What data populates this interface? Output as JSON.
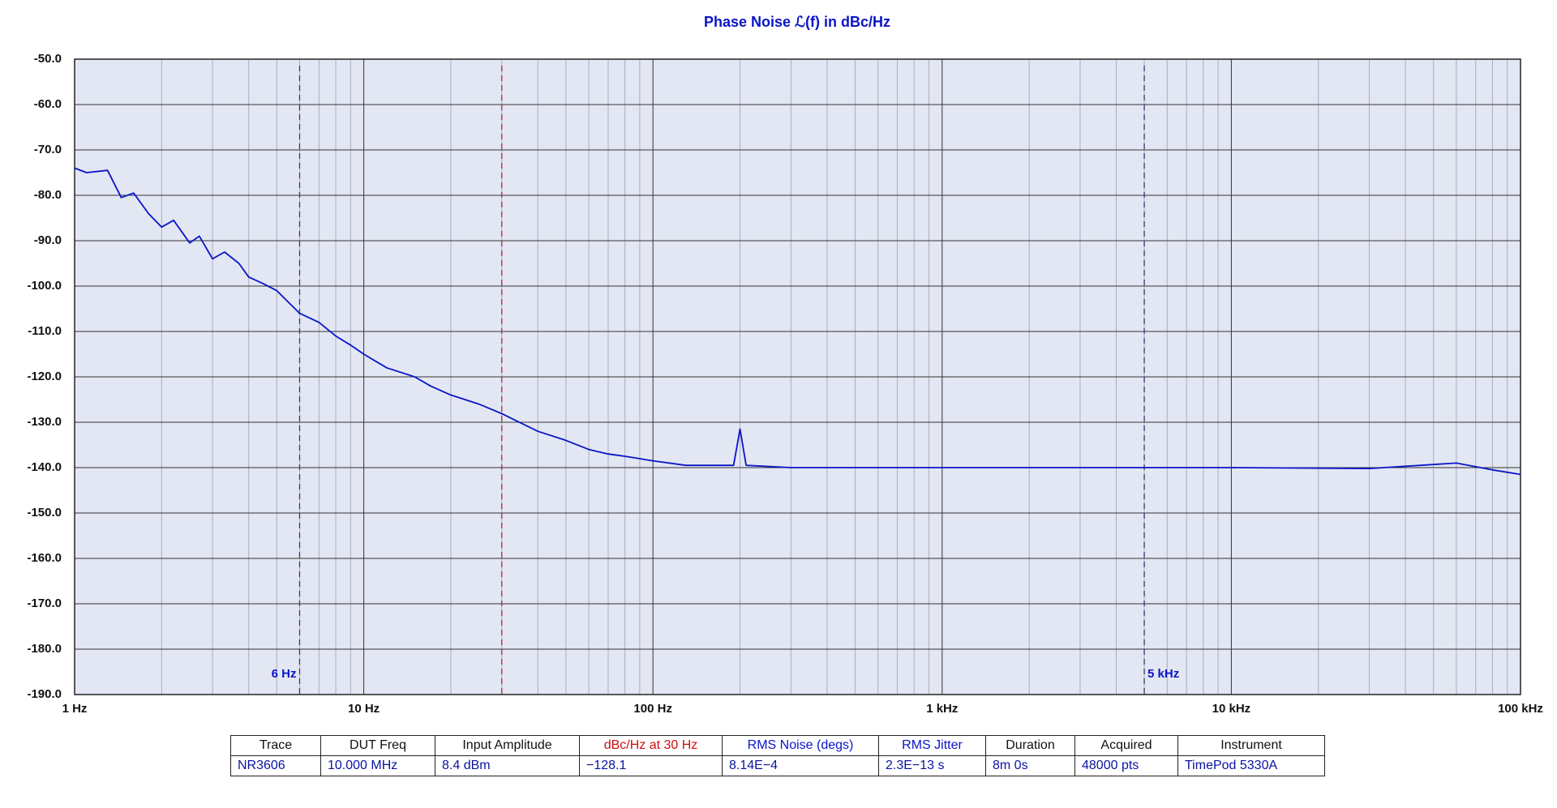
{
  "chart_data": {
    "type": "line",
    "title": "Phase Noise ℒ(f) in dBc/Hz",
    "x": [
      1,
      1.1,
      1.3,
      1.45,
      1.6,
      1.8,
      2,
      2.2,
      2.5,
      2.7,
      3,
      3.3,
      3.7,
      4,
      4.5,
      5,
      6,
      7,
      8,
      9,
      10,
      12,
      15,
      17,
      20,
      25,
      30,
      40,
      50,
      60,
      70,
      80,
      100,
      130,
      190,
      200,
      210,
      300,
      500,
      1000,
      3000,
      10000,
      30000,
      60000,
      80000,
      100000
    ],
    "values": [
      -74,
      -75,
      -74.5,
      -80.5,
      -79.5,
      -84,
      -87,
      -85.5,
      -90.5,
      -89,
      -94,
      -92.5,
      -95,
      -98,
      -99.5,
      -101,
      -106,
      -108,
      -111,
      -113,
      -115,
      -118,
      -120,
      -122,
      -124,
      -126,
      -128.1,
      -132,
      -134,
      -136,
      -137,
      -137.5,
      -138.5,
      -139.5,
      -139.5,
      -131.5,
      -139.5,
      -140,
      -140,
      -140,
      -140,
      -140,
      -140.2,
      -139,
      -140.5,
      -141.5
    ],
    "color": "#0a14c8",
    "log_x": true,
    "xlim": [
      1,
      100000
    ],
    "xticks": [
      {
        "value": 1,
        "label": "1 Hz"
      },
      {
        "value": 10,
        "label": "10 Hz"
      },
      {
        "value": 100,
        "label": "100 Hz"
      },
      {
        "value": 1000,
        "label": "1 kHz"
      },
      {
        "value": 10000,
        "label": "10 kHz"
      },
      {
        "value": 100000,
        "label": "100 kHz"
      }
    ],
    "ylim": [
      -190,
      -50
    ],
    "yticks": [
      {
        "value": -50,
        "label": "-50.0"
      },
      {
        "value": -60,
        "label": "-60.0"
      },
      {
        "value": -70,
        "label": "-70.0"
      },
      {
        "value": -80,
        "label": "-80.0"
      },
      {
        "value": -90,
        "label": "-90.0"
      },
      {
        "value": -100,
        "label": "-100.0"
      },
      {
        "value": -110,
        "label": "-110.0"
      },
      {
        "value": -120,
        "label": "-120.0"
      },
      {
        "value": -130,
        "label": "-130.0"
      },
      {
        "value": -140,
        "label": "-140.0"
      },
      {
        "value": -150,
        "label": "-150.0"
      },
      {
        "value": -160,
        "label": "-160.0"
      },
      {
        "value": -170,
        "label": "-170.0"
      },
      {
        "value": -180,
        "label": "-180.0"
      },
      {
        "value": -190,
        "label": "-190.0"
      }
    ],
    "grid": true,
    "minor_grid": true,
    "markers": [
      {
        "x": 6,
        "label": "6 Hz",
        "color": "#3a3a6a"
      },
      {
        "x": 30,
        "color": "#d02020"
      },
      {
        "x": 5000,
        "label": "5 kHz",
        "color": "#3a3a6a"
      }
    ],
    "table": {
      "header": [
        "Trace",
        "DUT Freq",
        "Input Amplitude",
        "dBc/Hz at 30 Hz",
        "RMS Noise (degs)",
        "RMS Jitter",
        "Duration",
        "Acquired",
        "Instrument"
      ],
      "row": [
        "NR3606",
        "10.000 MHz",
        "8.4 dBm",
        "−128.1",
        "8.14E−4",
        "2.3E−13 s",
        "8m 0s",
        "48000 pts",
        "TimePod 5330A"
      ]
    }
  }
}
